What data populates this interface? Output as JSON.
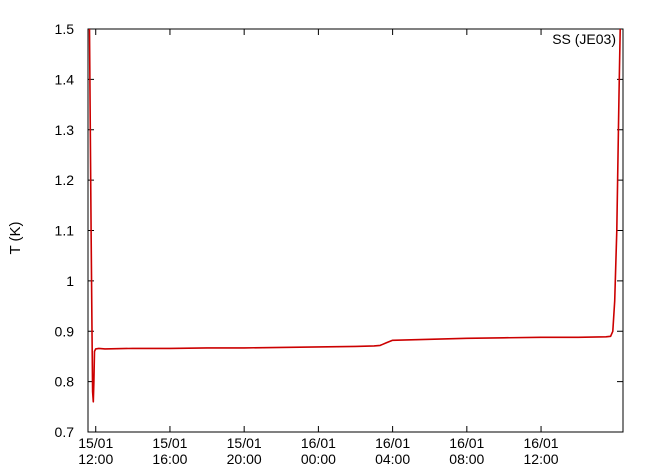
{
  "chart_data": {
    "type": "line",
    "title": "",
    "xlabel": "",
    "ylabel": "T (K)",
    "ylim": [
      0.7,
      1.5
    ],
    "yticks": [
      0.7,
      0.8,
      0.9,
      1,
      1.1,
      1.2,
      1.3,
      1.4,
      1.5
    ],
    "ytick_labels": [
      "0.7",
      "0.8",
      "0.9",
      "1",
      "1.1",
      "1.2",
      "1.3",
      "1.4",
      "1.5"
    ],
    "xlim": [
      "15/01 11:35",
      "16/01 16:25"
    ],
    "xticks": [
      "15/01 12:00",
      "15/01 16:00",
      "15/01 20:00",
      "16/01 00:00",
      "16/01 04:00",
      "16/01 08:00",
      "16/01 12:00"
    ],
    "xtick_labels": [
      [
        "15/01",
        "12:00"
      ],
      [
        "15/01",
        "16:00"
      ],
      [
        "15/01",
        "20:00"
      ],
      [
        "16/01",
        "00:00"
      ],
      [
        "16/01",
        "04:00"
      ],
      [
        "16/01",
        "08:00"
      ],
      [
        "16/01",
        "12:00"
      ]
    ],
    "grid": false,
    "legend_position": "top-right",
    "series": [
      {
        "name": "SS (JE03)",
        "color": "#cc0000",
        "x": [
          "15/01 11:40",
          "15/01 11:45",
          "15/01 11:48",
          "15/01 11:50",
          "15/01 11:52",
          "15/01 11:54",
          "15/01 11:56",
          "15/01 12:00",
          "15/01 12:10",
          "15/01 12:30",
          "15/01 14:00",
          "15/01 16:00",
          "15/01 18:00",
          "15/01 20:00",
          "15/01 22:00",
          "16/01 00:00",
          "16/01 02:00",
          "16/01 03:00",
          "16/01 03:20",
          "16/01 03:40",
          "16/01 04:00",
          "16/01 06:00",
          "16/01 08:00",
          "16/01 10:00",
          "16/01 12:00",
          "16/01 14:00",
          "16/01 15:30",
          "16/01 15:45",
          "16/01 15:52",
          "16/01 15:58",
          "16/01 16:05",
          "16/01 16:12",
          "16/01 16:16"
        ],
        "y": [
          1.5,
          1.1,
          0.9,
          0.78,
          0.76,
          0.8,
          0.86,
          0.865,
          0.866,
          0.865,
          0.866,
          0.866,
          0.867,
          0.867,
          0.868,
          0.869,
          0.87,
          0.871,
          0.872,
          0.877,
          0.882,
          0.884,
          0.886,
          0.887,
          0.888,
          0.888,
          0.889,
          0.89,
          0.9,
          0.96,
          1.1,
          1.37,
          1.5
        ]
      }
    ]
  }
}
